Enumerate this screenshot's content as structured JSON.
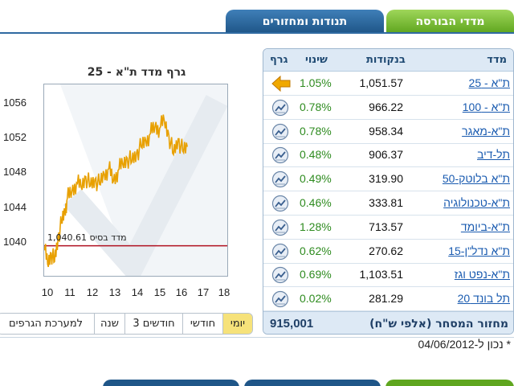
{
  "tabs": [
    {
      "label": "מדדי הבורסה",
      "active": true
    },
    {
      "label": "תנודות ומחזורים",
      "active": false
    }
  ],
  "chart": {
    "title": "גרף מדד ת\"א - 25",
    "base_label": "מדד בסיס 1,040.61",
    "y_ticks": [
      "1056",
      "1052",
      "1048",
      "1044",
      "1040"
    ],
    "x_ticks": [
      "10",
      "11",
      "12",
      "13",
      "14",
      "15",
      "16",
      "17",
      "18"
    ]
  },
  "chart_data": {
    "type": "line",
    "title": "גרף מדד ת\"א - 25",
    "xlabel": "",
    "ylabel": "",
    "xlim": [
      10,
      18
    ],
    "ylim": [
      1037,
      1059
    ],
    "base_value": 1040.61,
    "colors": {
      "line": "#e8a000",
      "base": "#b01020"
    },
    "series": [
      {
        "x": [
          10.0,
          10.15,
          10.3,
          10.45,
          10.6,
          10.75,
          10.9,
          11.0,
          11.2,
          11.4,
          11.6,
          11.8,
          12.0,
          12.2,
          12.4,
          12.6,
          12.8,
          13.0,
          13.2,
          13.4,
          13.6,
          13.8,
          14.0,
          14.2,
          14.4,
          14.6,
          14.8,
          15.0,
          15.2,
          15.4,
          15.6,
          15.8,
          16.0,
          16.2
        ],
        "y": [
          1040.5,
          1038.5,
          1039.8,
          1038.8,
          1041.5,
          1043.2,
          1044.6,
          1046.0,
          1046.8,
          1047.8,
          1047.3,
          1048.5,
          1047.4,
          1048.2,
          1047.6,
          1048.8,
          1049.4,
          1048.0,
          1049.2,
          1049.9,
          1050.6,
          1050.2,
          1051.2,
          1051.9,
          1052.6,
          1053.4,
          1054.2,
          1054.0,
          1054.9,
          1053.2,
          1051.0,
          1052.8,
          1051.4,
          1051.9
        ]
      }
    ]
  },
  "range_buttons": [
    {
      "label": "יומי",
      "active": true
    },
    {
      "label": "חודשי",
      "active": false
    },
    {
      "label": "3 חודשים",
      "active": false
    },
    {
      "label": "שנה",
      "active": false
    },
    {
      "label": "למערכת הגרפים",
      "active": false
    }
  ],
  "table": {
    "headers": {
      "name": "מדד",
      "points": "בנקודות",
      "change": "שינוי",
      "graph": "גרף"
    },
    "rows": [
      {
        "name": "ת\"א - 25",
        "points": "1,051.57",
        "change": "1.05%",
        "icon": "arrow-left-icon"
      },
      {
        "name": "ת\"א - 100",
        "points": "966.22",
        "change": "0.78%",
        "icon": "chart-icon"
      },
      {
        "name": "ת\"א-מאגר",
        "points": "958.34",
        "change": "0.78%",
        "icon": "chart-icon"
      },
      {
        "name": "תל-דיב",
        "points": "906.37",
        "change": "0.48%",
        "icon": "chart-icon"
      },
      {
        "name": "ת\"א בלוטק-50",
        "points": "319.90",
        "change": "0.49%",
        "icon": "chart-icon"
      },
      {
        "name": "ת\"א-טכנולוגיה",
        "points": "333.81",
        "change": "0.46%",
        "icon": "chart-icon"
      },
      {
        "name": "ת\"א-ביומד",
        "points": "713.57",
        "change": "1.28%",
        "icon": "chart-icon"
      },
      {
        "name": "ת\"א נדל\"ן-15",
        "points": "270.62",
        "change": "0.62%",
        "icon": "chart-icon"
      },
      {
        "name": "ת\"א-נפט וגז",
        "points": "1,103.51",
        "change": "0.69%",
        "icon": "chart-icon"
      },
      {
        "name": "תל בונד 20",
        "points": "281.29",
        "change": "0.02%",
        "icon": "chart-icon"
      }
    ],
    "footer": {
      "label": "מחזור המסחר (אלפי ש\"ח)",
      "value": "915,001"
    }
  },
  "as_of": {
    "prefix": "* נכון ל-",
    "date": "04/06/2012"
  }
}
